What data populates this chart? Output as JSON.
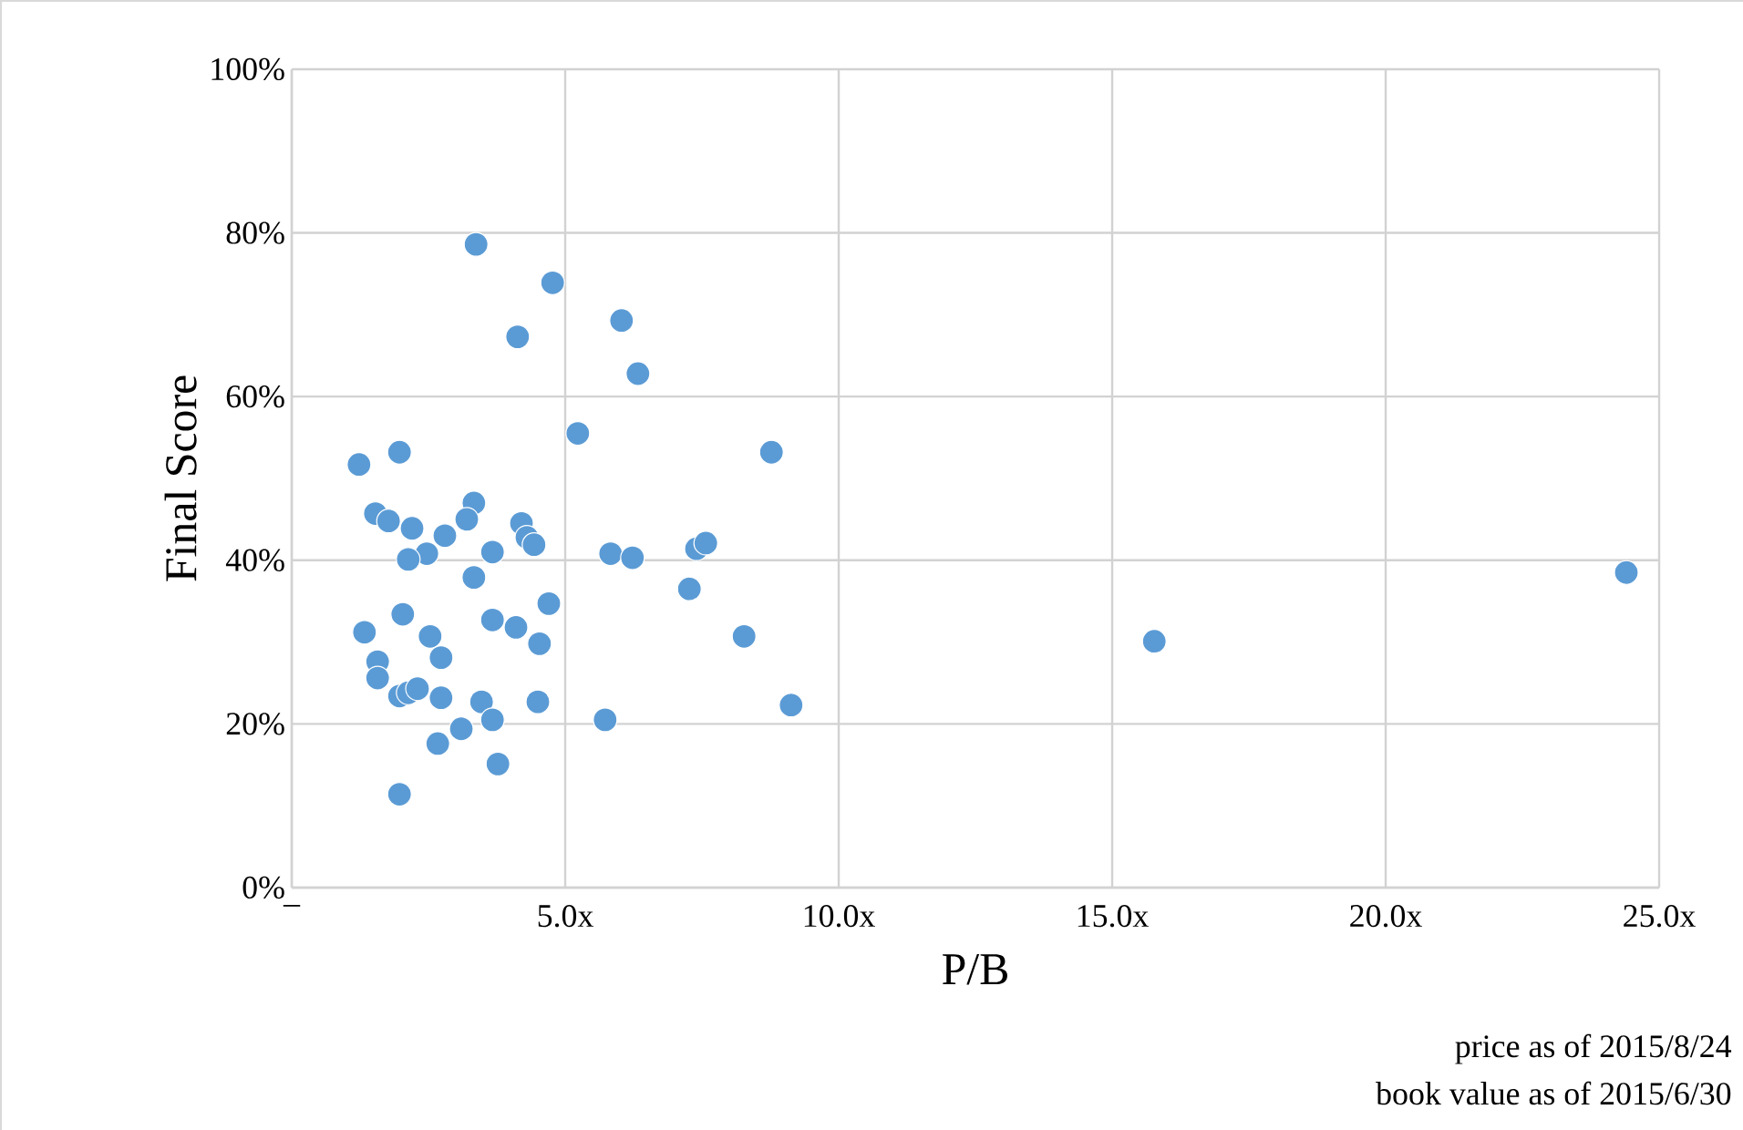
{
  "chart_data": {
    "type": "scatter",
    "xlabel": "P/B",
    "ylabel": "Final Score",
    "annotations": [
      "price as of 2015/8/24",
      "book value as of 2015/6/30"
    ],
    "xlim": [
      0,
      25
    ],
    "ylim": [
      0,
      100
    ],
    "xticks": [
      {
        "value": 0,
        "label": "–"
      },
      {
        "value": 5,
        "label": "5.0x"
      },
      {
        "value": 10,
        "label": "10.0x"
      },
      {
        "value": 15,
        "label": "15.0x"
      },
      {
        "value": 20,
        "label": "20.0x"
      },
      {
        "value": 25,
        "label": "25.0x"
      }
    ],
    "yticks": [
      {
        "value": 0,
        "label": "0%"
      },
      {
        "value": 20,
        "label": "20%"
      },
      {
        "value": 40,
        "label": "40%"
      },
      {
        "value": 60,
        "label": "60%"
      },
      {
        "value": 80,
        "label": "80%"
      },
      {
        "value": 100,
        "label": "100%"
      }
    ],
    "grid": true,
    "marker": "circle",
    "series": [
      {
        "color": "#5b9bd5",
        "x": [
          3.37,
          4.77,
          4.13,
          6.03,
          6.33,
          5.23,
          1.23,
          1.97,
          8.77,
          3.33,
          1.53,
          1.77,
          2.2,
          3.2,
          4.2,
          4.3,
          4.43,
          2.8,
          2.47,
          2.13,
          3.67,
          5.83,
          6.23,
          7.4,
          7.57,
          3.33,
          7.27,
          4.7,
          2.03,
          3.67,
          4.1,
          1.33,
          2.53,
          4.53,
          8.27,
          15.77,
          24.4,
          2.73,
          1.57,
          1.57,
          1.97,
          2.13,
          2.3,
          2.73,
          3.47,
          4.5,
          3.67,
          5.73,
          9.13,
          3.1,
          2.67,
          3.77,
          1.97
        ],
        "values": [
          78.6,
          73.9,
          67.3,
          69.3,
          62.8,
          55.5,
          51.7,
          53.2,
          53.2,
          47.0,
          45.7,
          44.8,
          43.9,
          45.0,
          44.5,
          42.8,
          41.9,
          43.0,
          40.8,
          40.1,
          41.0,
          40.8,
          40.3,
          41.4,
          42.1,
          37.9,
          36.5,
          34.7,
          33.4,
          32.7,
          31.8,
          31.2,
          30.7,
          29.8,
          30.7,
          30.1,
          38.5,
          28.1,
          27.6,
          25.6,
          23.4,
          23.8,
          24.3,
          23.2,
          22.7,
          22.7,
          20.5,
          20.5,
          22.3,
          19.4,
          17.6,
          15.1,
          11.4
        ]
      }
    ]
  }
}
